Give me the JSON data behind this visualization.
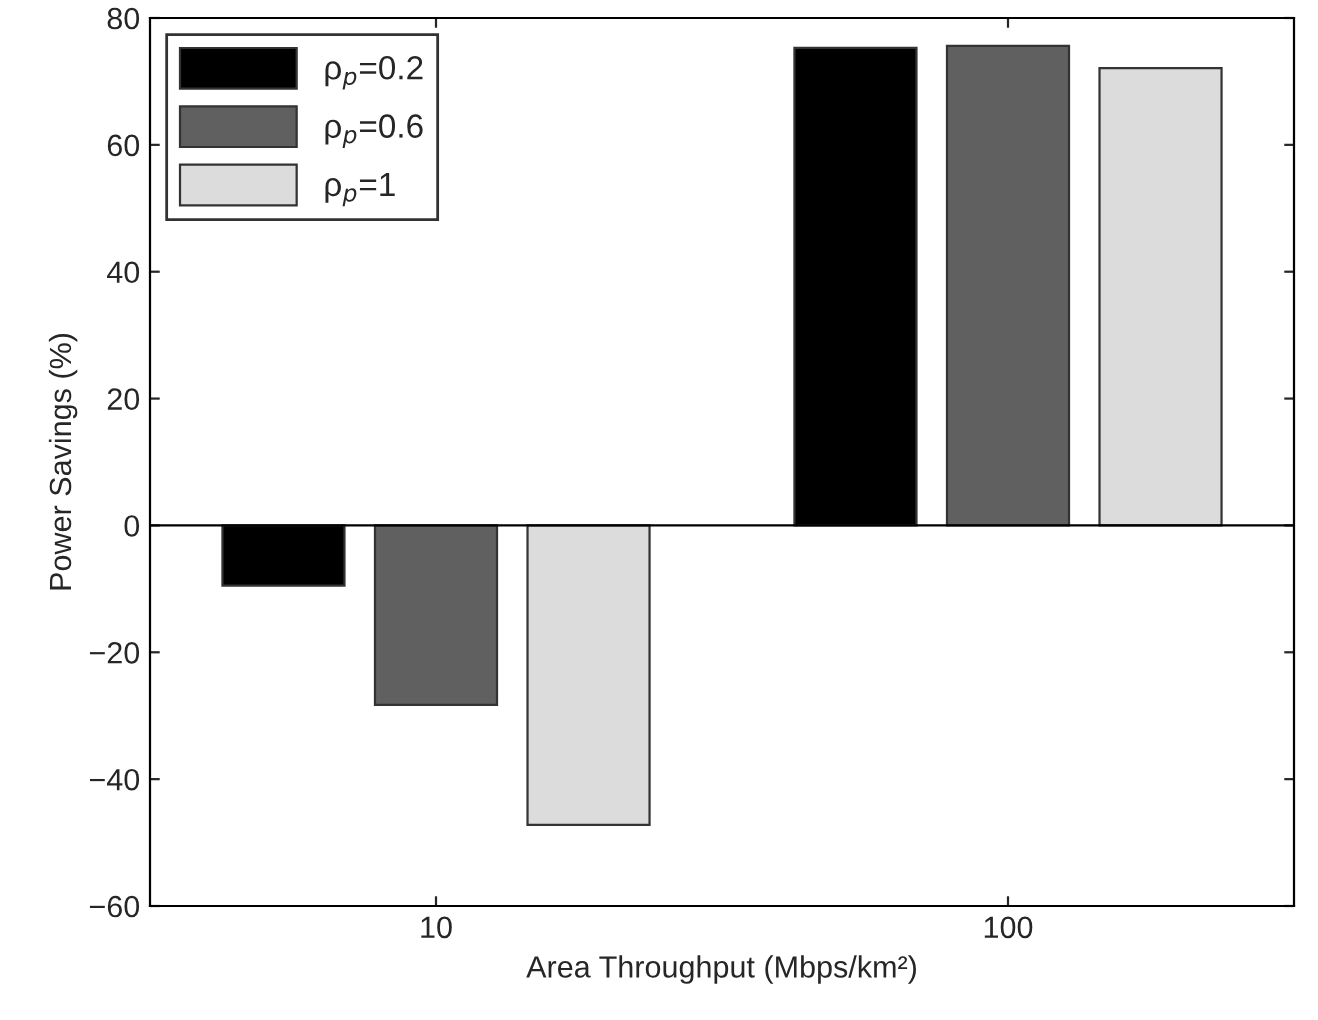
{
  "chart_data": {
    "type": "bar",
    "xlabel": "Area Throughput (Mbps/km²)",
    "ylabel": "Power Savings (%)",
    "categories": [
      "10",
      "100"
    ],
    "series": [
      {
        "name": "ρ$_{p}$=0.2",
        "color": "#000000",
        "values": [
          -9.5,
          75.3
        ]
      },
      {
        "name": "ρ$_{p}$=0.6",
        "color": "#606060",
        "values": [
          -28.3,
          75.6
        ]
      },
      {
        "name": "ρ$_{p}$=1",
        "color": "#dcdcdc",
        "values": [
          -47.2,
          72.1
        ]
      }
    ],
    "ylim": [
      -60,
      80
    ],
    "yticks": [
      {
        "value": -60,
        "label": "−60"
      },
      {
        "value": -40,
        "label": "−40"
      },
      {
        "value": -20,
        "label": "−20"
      },
      0,
      20,
      40,
      60,
      80
    ],
    "ref_lines": [
      {
        "axis": "y",
        "value": 0,
        "color": "#000000"
      }
    ],
    "grid": false,
    "legend": "top left"
  }
}
